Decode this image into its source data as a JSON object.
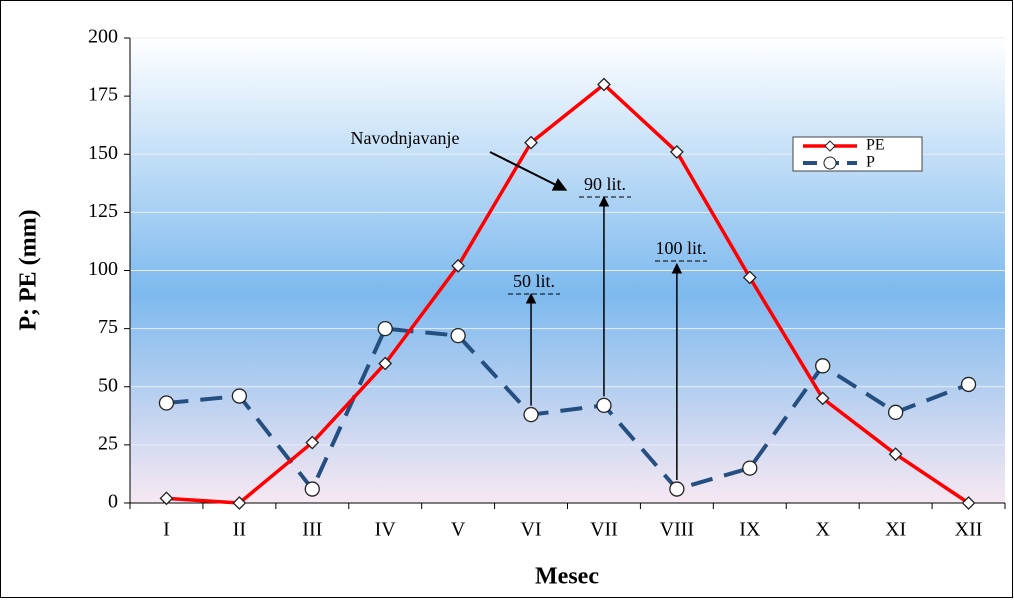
{
  "chart_data": {
    "type": "line",
    "xlabel": "Mesec",
    "ylabel": "P; PE (mm)",
    "categories": [
      "I",
      "II",
      "III",
      "IV",
      "V",
      "VI",
      "VII",
      "VIII",
      "IX",
      "X",
      "XI",
      "XII"
    ],
    "series": [
      {
        "name": "PE",
        "color": "#ff0000",
        "marker": "diamond",
        "values": [
          2,
          0,
          26,
          60,
          102,
          155,
          180,
          151,
          97,
          45,
          21,
          0
        ]
      },
      {
        "name": "P",
        "color": "#244f80",
        "marker": "circle",
        "dashed": true,
        "values": [
          43,
          46,
          6,
          75,
          72,
          38,
          42,
          6,
          15,
          59,
          39,
          51
        ]
      }
    ],
    "ylim": [
      0,
      200
    ],
    "yticks": [
      0,
      25,
      50,
      75,
      100,
      125,
      150,
      175,
      200
    ],
    "grid": true,
    "legend": "upper right",
    "annotations": [
      "Navodnjavanje",
      "50 lit.",
      "90 lit.",
      "100 lit."
    ]
  }
}
